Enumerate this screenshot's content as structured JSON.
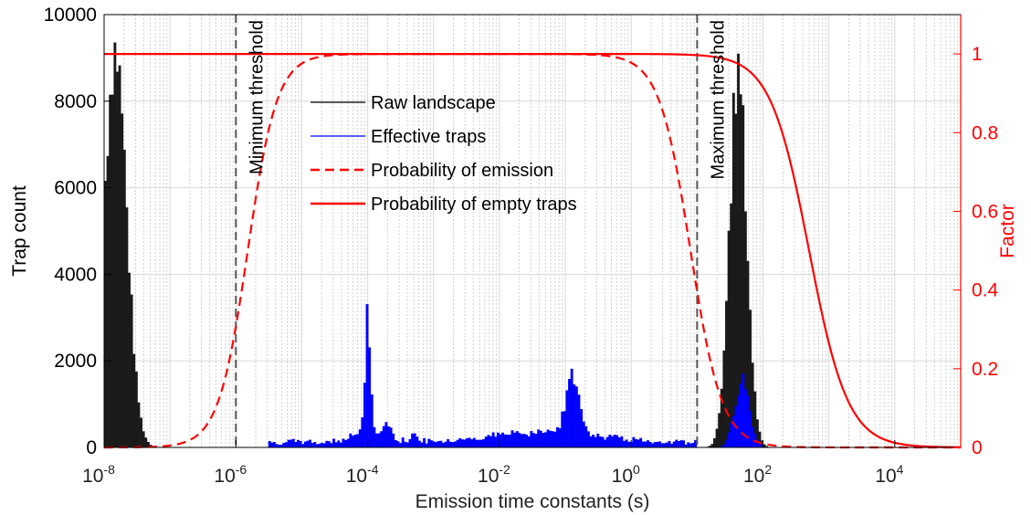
{
  "chart_data": {
    "type": "bar",
    "xlabel": "Emission time constants (s)",
    "ylabel_left": "Trap count",
    "ylabel_right": "Factor",
    "x_scale": "log",
    "xlim": [
      1e-08,
      100000.0
    ],
    "ylim_left": [
      0,
      10000
    ],
    "ylim_right": [
      0,
      1.1
    ],
    "x_ticks": [
      {
        "value": 1e-08,
        "base": "10",
        "exp": "-8"
      },
      {
        "value": 1e-06,
        "base": "10",
        "exp": "-6"
      },
      {
        "value": 0.0001,
        "base": "10",
        "exp": "-4"
      },
      {
        "value": 0.01,
        "base": "10",
        "exp": "-2"
      },
      {
        "value": 1,
        "base": "10",
        "exp": "0"
      },
      {
        "value": 100,
        "base": "10",
        "exp": "2"
      },
      {
        "value": 10000,
        "base": "10",
        "exp": "4"
      }
    ],
    "y_ticks_left": [
      "0",
      "2000",
      "4000",
      "6000",
      "8000",
      "10000"
    ],
    "y_ticks_right": [
      "0",
      "0.2",
      "0.4",
      "0.6",
      "0.8",
      "1"
    ],
    "grid": true,
    "legend_position": "upper-center",
    "legend": [
      {
        "label": "Raw landscape",
        "color": "#000000",
        "style": "solid-thin"
      },
      {
        "label": "Effective traps",
        "color": "#0000ff",
        "style": "solid-thin"
      },
      {
        "label": "Probability of emission",
        "color": "#ff0000",
        "style": "dashed"
      },
      {
        "label": "Probability of empty traps",
        "color": "#ff0000",
        "style": "solid"
      }
    ],
    "annotations": [
      {
        "text": "Minimum threshold",
        "x": 1e-06
      },
      {
        "text": "Maximum threshold",
        "x": 10
      }
    ],
    "thresholds": [
      1e-06,
      10
    ],
    "raw_landscape_peaks": [
      {
        "center_log10": -7.83,
        "width_log10": 0.17,
        "height": 9200
      },
      {
        "center_log10": 1.62,
        "width_log10": 0.13,
        "height": 8600
      }
    ],
    "effective_traps_peaks": [
      {
        "center_log10": -4.0,
        "width_log10": 0.04,
        "height": 2600
      },
      {
        "center_log10": -4.0,
        "width_log10": 0.25,
        "height": 250
      },
      {
        "center_log10": -3.7,
        "width_log10": 0.05,
        "height": 350
      },
      {
        "center_log10": -3.3,
        "width_log10": 0.04,
        "height": 250
      },
      {
        "center_log10": -0.88,
        "width_log10": 0.1,
        "height": 1350
      },
      {
        "center_log10": -1.3,
        "width_log10": 0.8,
        "height": 250
      },
      {
        "center_log10": 1.68,
        "width_log10": 0.11,
        "height": 1600
      },
      {
        "baseline_from_log10": -5.5,
        "baseline_to_log10": 1.0,
        "height": 150
      }
    ],
    "probability_of_emission_sigmoids": [
      {
        "rise_center_log10": -5.82,
        "fall_center_log10": 0.9,
        "max": 1.0
      }
    ],
    "probability_of_empty_traps": {
      "center_log10": 2.7,
      "max": 1.0
    },
    "colors": {
      "raw": "#1a1a1a",
      "effective": "#0000ff",
      "factor": "#ff0000",
      "threshold": "#555555"
    }
  }
}
